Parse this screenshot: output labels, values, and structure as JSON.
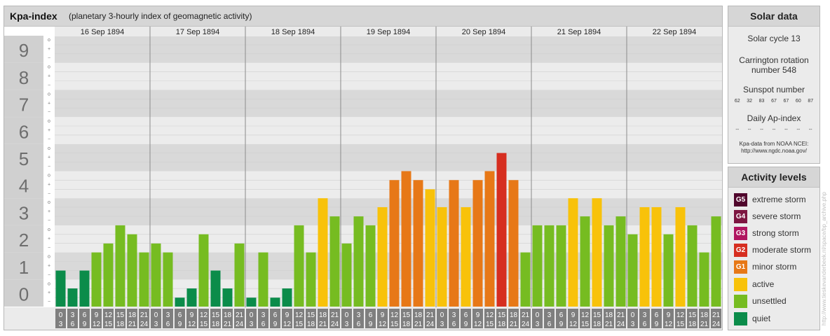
{
  "title": "Kpa-index",
  "subtitle": "(planetary 3-hourly index of geomagnetic activity)",
  "chart_data": {
    "type": "bar",
    "ylim": [
      0,
      9
    ],
    "y_ticks": [
      "0",
      "1",
      "2",
      "3",
      "4",
      "5",
      "6",
      "7",
      "8",
      "9"
    ],
    "minor_ticks": [
      "o",
      "+",
      "−"
    ],
    "days": [
      "16 Sep 1894",
      "17 Sep 1894",
      "18 Sep 1894",
      "19 Sep 1894",
      "20 Sep 1894",
      "21 Sep 1894",
      "22 Sep 1894"
    ],
    "interval_top": [
      "0",
      "3",
      "6",
      "9",
      "12",
      "15",
      "18",
      "21"
    ],
    "interval_bottom": [
      "3",
      "6",
      "9",
      "12",
      "15",
      "18",
      "21",
      "24"
    ],
    "values": [
      [
        1.33,
        0.67,
        1.33,
        2.0,
        2.33,
        3.0,
        2.67,
        2.0
      ],
      [
        2.33,
        2.0,
        0.33,
        0.67,
        2.67,
        1.33,
        0.67,
        2.33
      ],
      [
        0.33,
        2.0,
        0.33,
        0.67,
        3.0,
        2.0,
        4.0,
        3.33
      ],
      [
        2.33,
        3.33,
        3.0,
        3.67,
        4.67,
        5.0,
        4.67,
        4.33
      ],
      [
        3.67,
        4.67,
        3.67,
        4.67,
        5.0,
        5.67,
        4.67,
        2.0
      ],
      [
        3.0,
        3.0,
        3.0,
        4.0,
        3.33,
        4.0,
        3.0,
        3.33
      ],
      [
        2.67,
        3.67,
        3.67,
        2.67,
        3.67,
        3.0,
        2.0,
        3.33
      ]
    ],
    "colors": {
      "quiet": "#0b8c4a",
      "unsettled": "#76bc21",
      "active": "#f8c20a",
      "minor": "#e77817",
      "moderate": "#d62e20",
      "strong": "#b0155f",
      "severe": "#7d1641",
      "extreme": "#50062c"
    }
  },
  "solar": {
    "heading": "Solar data",
    "cycle": "Solar cycle 13",
    "carrington_1": "Carrington rotation",
    "carrington_2": "number 548",
    "sunspot_heading": "Sunspot number",
    "sunspots": [
      "62",
      "32",
      "83",
      "67",
      "67",
      "60",
      "87"
    ],
    "ap_heading": "Daily Ap-index",
    "ap_values": [
      "--",
      "--",
      "--",
      "--",
      "--",
      "--",
      "--"
    ],
    "source_1": "Kpa-data from NOAA NCEI:",
    "source_2": "http://www.ngdc.noaa.gov/"
  },
  "activity": {
    "heading": "Activity levels",
    "levels": [
      {
        "badge": "G5",
        "label": "extreme storm",
        "color": "#50062c"
      },
      {
        "badge": "G4",
        "label": "severe storm",
        "color": "#7d1641"
      },
      {
        "badge": "G3",
        "label": "strong storm",
        "color": "#b0155f"
      },
      {
        "badge": "G2",
        "label": "moderate storm",
        "color": "#d62e20"
      },
      {
        "badge": "G1",
        "label": "minor storm",
        "color": "#e77817"
      },
      {
        "badge": "",
        "label": "active",
        "color": "#f8c20a"
      },
      {
        "badge": "",
        "label": "unsettled",
        "color": "#76bc21"
      },
      {
        "badge": "",
        "label": "quiet",
        "color": "#0b8c4a"
      }
    ]
  },
  "credit": "http://www.tieskevanderbeek.nl/space/bp_archive.php"
}
